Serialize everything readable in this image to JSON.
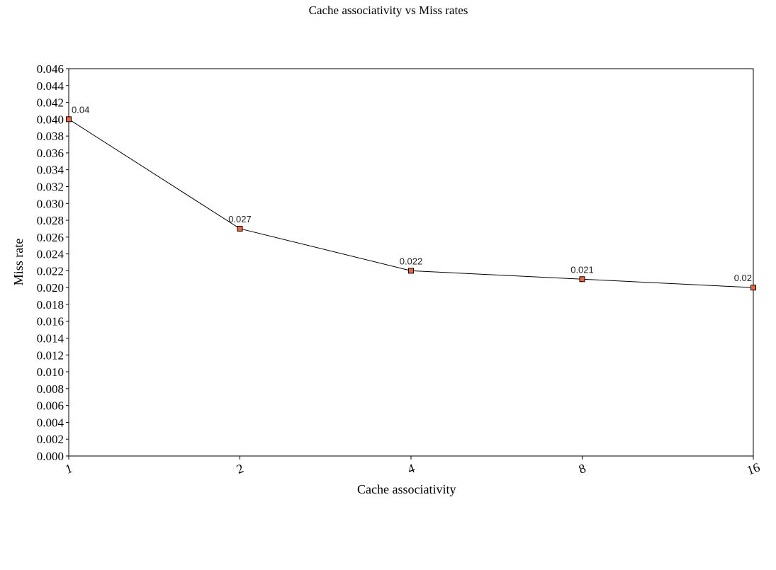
{
  "chart_data": {
    "type": "line",
    "title": "Cache associativity vs Miss rates",
    "xlabel": "Cache associativity",
    "ylabel": "Miss rate",
    "categories": [
      "1",
      "2",
      "4",
      "8",
      "16"
    ],
    "series": [
      {
        "values": [
          0.04,
          0.027,
          0.022,
          0.021,
          0.02
        ],
        "data_labels": [
          "0.04",
          "0.027",
          "0.022",
          "0.021",
          "0.02"
        ]
      }
    ],
    "ylim": [
      0,
      0.046
    ],
    "ytick_labels": [
      "0.000",
      "0.002",
      "0.004",
      "0.006",
      "0.008",
      "0.010",
      "0.012",
      "0.014",
      "0.016",
      "0.018",
      "0.020",
      "0.022",
      "0.024",
      "0.026",
      "0.028",
      "0.030",
      "0.032",
      "0.034",
      "0.036",
      "0.038",
      "0.040",
      "0.042",
      "0.044",
      "0.046"
    ],
    "grid": false,
    "line_color": "#000000",
    "marker_fill": "#f2643c",
    "marker_stroke": "#000000"
  }
}
